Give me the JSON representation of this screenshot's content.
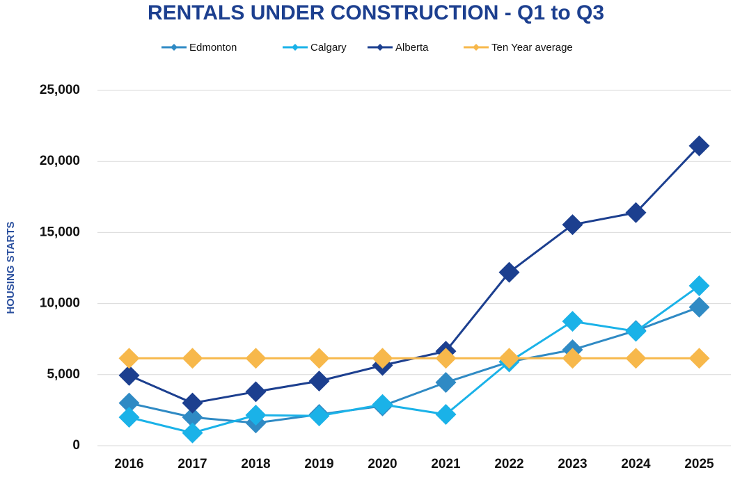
{
  "chart_data": {
    "type": "line",
    "title": "RENTALS UNDER CONSTRUCTION - Q1 to Q3",
    "y_label": "HOUSING STARTS",
    "categories": [
      "2016",
      "2017",
      "2018",
      "2019",
      "2020",
      "2021",
      "2022",
      "2023",
      "2024",
      "2025"
    ],
    "series": [
      {
        "name": "Edmonton",
        "color": "#2f8ac4",
        "values": [
          3000,
          2000,
          1600,
          2200,
          2800,
          4450,
          5900,
          6750,
          8100,
          9750
        ]
      },
      {
        "name": "Calgary",
        "color": "#1ab2e8",
        "values": [
          2000,
          900,
          2150,
          2100,
          2900,
          2200,
          5900,
          8750,
          8050,
          11250
        ]
      },
      {
        "name": "Alberta",
        "color": "#1c3f8f",
        "values": [
          4950,
          3000,
          3800,
          4550,
          5650,
          6650,
          12200,
          15550,
          16400,
          21100
        ]
      },
      {
        "name": "Ten Year average",
        "color": "#f7b84b",
        "values": [
          6150,
          6150,
          6150,
          6150,
          6150,
          6150,
          6150,
          6150,
          6150,
          6150
        ]
      }
    ],
    "ylim": [
      0,
      25000
    ],
    "yticks": [
      0,
      {
        "value": 5000,
        "label": "5,000"
      },
      {
        "value": 10000,
        "label": "10,000"
      },
      {
        "value": 15000,
        "label": "15,000"
      },
      {
        "value": 20000,
        "label": "20,000"
      },
      {
        "value": 25000,
        "label": "25,000"
      }
    ],
    "grid": true,
    "legend": "top"
  }
}
